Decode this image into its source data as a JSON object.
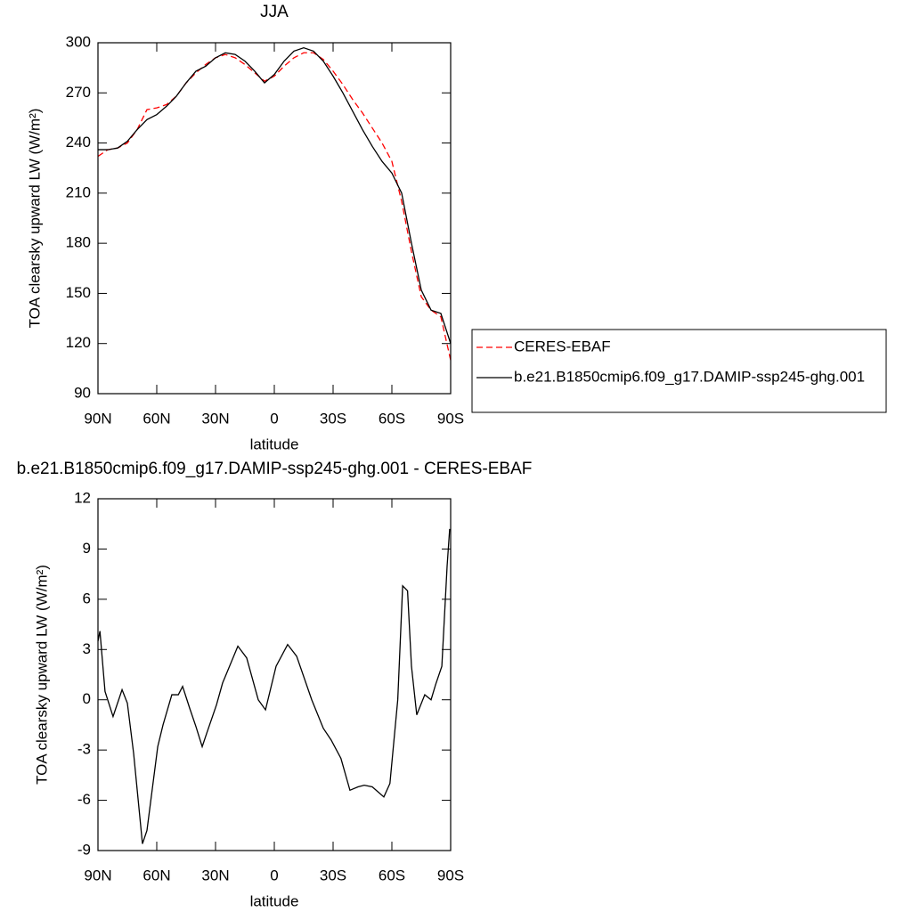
{
  "chart_data": [
    {
      "type": "line",
      "title": "JJA",
      "x_label": "latitude",
      "y_label": "TOA clearsky upward LW (W/m²)",
      "xlim": [
        90,
        -90
      ],
      "xticks": [
        {
          "value": 90,
          "label": "90N"
        },
        {
          "value": 60,
          "label": "60N"
        },
        {
          "value": 30,
          "label": "30N"
        },
        0,
        {
          "value": -30,
          "label": "30S"
        },
        {
          "value": -60,
          "label": "60S"
        },
        {
          "value": -90,
          "label": "90S"
        }
      ],
      "ylim": [
        90,
        300
      ],
      "yticks": [
        90,
        120,
        150,
        180,
        210,
        240,
        270,
        300
      ],
      "legend": "right outside",
      "x": [
        90,
        85,
        80,
        75,
        70,
        65,
        60,
        55,
        50,
        45,
        40,
        35,
        30,
        25,
        20,
        15,
        10,
        5,
        0,
        -5,
        -10,
        -15,
        -20,
        -25,
        -30,
        -35,
        -40,
        -45,
        -50,
        -55,
        -60,
        -65,
        -70,
        -75,
        -80,
        -85,
        -90
      ],
      "series": [
        {
          "name": "CERES-EBAF",
          "color": "#ff0000",
          "dash": "dashed",
          "values": [
            232,
            236,
            237,
            240,
            248,
            260,
            261,
            263,
            268,
            276,
            282,
            287,
            291,
            293,
            291,
            287,
            282,
            277,
            280,
            286,
            291,
            294,
            294,
            290,
            283,
            275,
            266,
            258,
            249,
            240,
            229,
            205,
            175,
            148,
            140,
            136,
            110
          ]
        },
        {
          "name": "b.e21.B1850cmip6.f09_g17.DAMIP-ssp245-ghg.001",
          "color": "#000000",
          "dash": "solid",
          "values": [
            236,
            236,
            237,
            241,
            248,
            254,
            257,
            262,
            268,
            276,
            283,
            286,
            291,
            294,
            293,
            289,
            283,
            276,
            281,
            289,
            295,
            297,
            295,
            289,
            280,
            270,
            259,
            248,
            238,
            229,
            222,
            210,
            180,
            152,
            140,
            138,
            120
          ]
        }
      ]
    },
    {
      "type": "line",
      "title": "b.e21.B1850cmip6.f09_g17.DAMIP-ssp245-ghg.001 - CERES-EBAF",
      "x_label": "latitude",
      "y_label": "TOA clearsky upward LW (W/m²)",
      "xlim": [
        90,
        -90
      ],
      "xticks": [
        {
          "value": 90,
          "label": "90N"
        },
        {
          "value": 60,
          "label": "60N"
        },
        {
          "value": 30,
          "label": "30N"
        },
        0,
        {
          "value": -30,
          "label": "30S"
        },
        {
          "value": -60,
          "label": "60S"
        },
        {
          "value": -90,
          "label": "90S"
        }
      ],
      "ylim": [
        -9,
        12
      ],
      "yticks": [
        -9,
        -6,
        -3,
        0,
        3,
        6,
        9,
        12
      ],
      "x": [
        90,
        89,
        86.4,
        82.3,
        77.7,
        75,
        71.8,
        67.3,
        65,
        59.5,
        56.8,
        52.3,
        49,
        46.8,
        43.2,
        40,
        36.8,
        34.5,
        29.5,
        26.4,
        18.6,
        14.1,
        8.2,
        4.5,
        -0.9,
        -6.8,
        -11.4,
        -19.1,
        -25,
        -29,
        -34,
        -38.6,
        -42.7,
        -45.9,
        -50,
        -55.9,
        -59,
        -63,
        -65.5,
        -68,
        -70,
        -72.7,
        -76.8,
        -80,
        -82.3,
        -85.5,
        -88.2,
        -89.5
      ],
      "series": [
        {
          "color": "#000000",
          "dash": "solid",
          "values": [
            3.5,
            4.1,
            0.5,
            -1,
            0.6,
            -0.2,
            -3.2,
            -8.6,
            -7.8,
            -2.8,
            -1.5,
            0.3,
            0.3,
            0.8,
            -0.5,
            -1.6,
            -2.8,
            -2,
            -0.3,
            1,
            3.2,
            2.5,
            0,
            -0.6,
            2,
            3.3,
            2.6,
            0,
            -1.7,
            -2.4,
            -3.5,
            -5.4,
            -5.2,
            -5.1,
            -5.2,
            -5.8,
            -5,
            0,
            6.8,
            6.5,
            2,
            -0.9,
            0.3,
            0,
            0.9,
            2,
            8,
            10.2
          ]
        }
      ]
    }
  ]
}
